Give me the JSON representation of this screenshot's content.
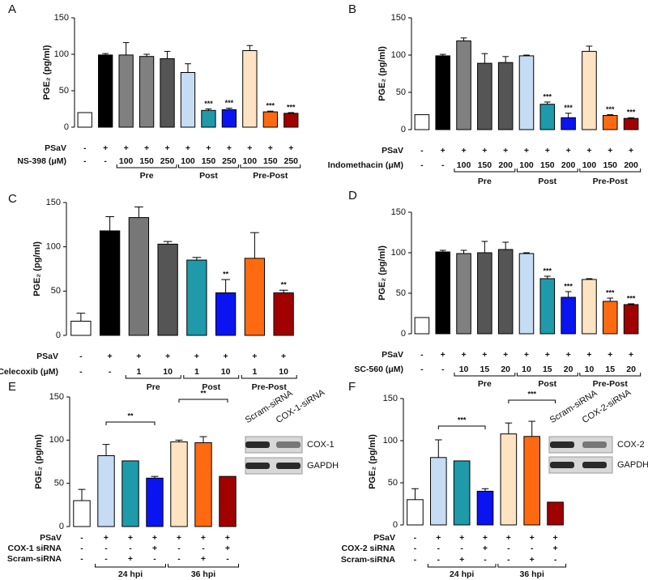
{
  "chart_data": [
    {
      "type": "bar",
      "panel": "A",
      "y_label": "PGE₂ (pg/ml)",
      "ylim": [
        0,
        150
      ],
      "yticks": [
        0,
        50,
        100,
        150
      ],
      "values": [
        20,
        99,
        99,
        97,
        94,
        75,
        23,
        24,
        105,
        21,
        19
      ],
      "errors": [
        null,
        2,
        17,
        3,
        10,
        12,
        2,
        2,
        7,
        1,
        1
      ],
      "colors": [
        "#ffffff",
        "#000000",
        "#808080",
        "#808080",
        "#555555",
        "#c6dcf2",
        "#1e9aaa",
        "#0a14f0",
        "#fde3c2",
        "#ff6a10",
        "#a00000"
      ],
      "significance": [
        null,
        null,
        null,
        null,
        null,
        null,
        "***",
        "***",
        null,
        "***",
        "***"
      ],
      "conditions": [
        {
          "label": "PSaV",
          "values": [
            "-",
            "+",
            "+",
            "+",
            "+",
            "+",
            "+",
            "+",
            "+",
            "+",
            "+"
          ]
        },
        {
          "label": "NS-398 (μM)",
          "values": [
            "-",
            "-",
            "100",
            "150",
            "250",
            "100",
            "150",
            "250",
            "100",
            "150",
            "250"
          ]
        }
      ],
      "groups": [
        "Pre",
        "Post",
        "Pre-Post"
      ]
    },
    {
      "type": "bar",
      "panel": "B",
      "y_label": "PGE₂ (pg/ml)",
      "ylim": [
        0,
        150
      ],
      "yticks": [
        0,
        50,
        100,
        150
      ],
      "values": [
        20,
        99,
        119,
        89,
        90,
        99,
        34,
        16,
        105,
        19,
        15
      ],
      "errors": [
        null,
        2,
        4,
        13,
        8,
        1,
        3,
        6,
        7,
        1,
        1
      ],
      "colors": [
        "#ffffff",
        "#000000",
        "#808080",
        "#555555",
        "#555555",
        "#c6dcf2",
        "#1e9aaa",
        "#0a14f0",
        "#fde3c2",
        "#ff6a10",
        "#a00000"
      ],
      "significance": [
        null,
        null,
        null,
        null,
        null,
        null,
        "***",
        "***",
        null,
        "***",
        "***"
      ],
      "conditions": [
        {
          "label": "PSaV",
          "values": [
            "-",
            "+",
            "+",
            "+",
            "+",
            "+",
            "+",
            "+",
            "+",
            "+",
            "+"
          ]
        },
        {
          "label": "Indomethacin (μM)",
          "values": [
            "-",
            "-",
            "100",
            "150",
            "200",
            "100",
            "150",
            "200",
            "100",
            "150",
            "200"
          ]
        }
      ],
      "groups": [
        "Pre",
        "Post",
        "Pre-Post"
      ]
    },
    {
      "type": "bar",
      "panel": "C",
      "y_label": "PGE₂ (pg/ml)",
      "ylim": [
        0,
        150
      ],
      "yticks": [
        0,
        50,
        100,
        150
      ],
      "values": [
        16,
        118,
        133,
        103,
        85,
        48,
        87,
        48
      ],
      "errors": [
        9,
        16,
        12,
        3,
        3,
        15,
        29,
        3
      ],
      "colors": [
        "#ffffff",
        "#000000",
        "#777777",
        "#555555",
        "#1e9aaa",
        "#0a14f0",
        "#ff6a10",
        "#a00000"
      ],
      "significance": [
        null,
        null,
        null,
        null,
        null,
        "**",
        null,
        "**"
      ],
      "conditions": [
        {
          "label": "PSaV",
          "values": [
            "-",
            "+",
            "+",
            "+",
            "+",
            "+",
            "+",
            "+"
          ]
        },
        {
          "label": "Celecoxib (μM)",
          "values": [
            "-",
            "-",
            "1",
            "10",
            "1",
            "10",
            "1",
            "10"
          ]
        }
      ],
      "groups": [
        "Pre",
        "Post",
        "Pre-Post"
      ]
    },
    {
      "type": "bar",
      "panel": "D",
      "y_label": "PGE₂ (pg/ml)",
      "ylim": [
        0,
        150
      ],
      "yticks": [
        0,
        50,
        100,
        150
      ],
      "values": [
        20,
        101,
        99,
        100,
        104,
        99,
        68,
        45,
        67,
        40,
        36
      ],
      "errors": [
        null,
        2,
        4,
        14,
        9,
        1,
        3,
        7,
        1,
        4,
        1
      ],
      "colors": [
        "#ffffff",
        "#000000",
        "#808080",
        "#555555",
        "#555555",
        "#c6dcf2",
        "#1e9aaa",
        "#0a14f0",
        "#fde3c2",
        "#ff6a10",
        "#a00000"
      ],
      "significance": [
        null,
        null,
        null,
        null,
        null,
        null,
        "***",
        "***",
        null,
        "***",
        "***"
      ],
      "conditions": [
        {
          "label": "PSaV",
          "values": [
            "-",
            "+",
            "+",
            "+",
            "+",
            "+",
            "+",
            "+",
            "+",
            "+",
            "+"
          ]
        },
        {
          "label": "SC-560 (μM)",
          "values": [
            "-",
            "-",
            "10",
            "15",
            "20",
            "10",
            "15",
            "20",
            "10",
            "15",
            "20"
          ]
        }
      ],
      "groups": [
        "Pre",
        "Post",
        "Pre-Post"
      ]
    },
    {
      "type": "bar",
      "panel": "E",
      "y_label": "PGE₂ (pg/ml)",
      "ylim": [
        0,
        150
      ],
      "yticks": [
        0,
        50,
        100,
        150
      ],
      "values": [
        30,
        82,
        76,
        56,
        98,
        97,
        58
      ],
      "errors": [
        13,
        13,
        null,
        2,
        2,
        7,
        null
      ],
      "colors": [
        "#ffffff",
        "#c6dcf2",
        "#1e9aaa",
        "#0a14f0",
        "#fde3c2",
        "#ff6a10",
        "#a00000"
      ],
      "significance": [
        null,
        null,
        null,
        null,
        null,
        null,
        null
      ],
      "conditions": [
        {
          "label": "PSaV",
          "values": [
            "-",
            "+",
            "+",
            "+",
            "+",
            "+",
            "+"
          ]
        },
        {
          "label": "COX-1 siRNA",
          "values": [
            "-",
            "-",
            "-",
            "+",
            "-",
            "-",
            "+"
          ]
        },
        {
          "label": "Scram-siRNA",
          "values": [
            "-",
            "-",
            "+",
            "-",
            "-",
            "+",
            "-"
          ]
        }
      ],
      "groups": [
        "24 hpi",
        "36 hpi"
      ],
      "comparisons": [
        "**",
        "**"
      ],
      "blot": {
        "lanes": [
          "Scram-siRNA",
          "COX-1-siRNA"
        ],
        "bands": [
          "COX-1",
          "GAPDH"
        ]
      }
    },
    {
      "type": "bar",
      "panel": "F",
      "y_label": "PGE₂ (pg/ml)",
      "ylim": [
        0,
        150
      ],
      "yticks": [
        0,
        50,
        100,
        150
      ],
      "values": [
        30,
        80,
        76,
        40,
        108,
        105,
        27
      ],
      "errors": [
        13,
        21,
        null,
        3,
        13,
        18,
        null
      ],
      "colors": [
        "#ffffff",
        "#c6dcf2",
        "#1e9aaa",
        "#0a14f0",
        "#fde3c2",
        "#ff6a10",
        "#a00000"
      ],
      "significance": [
        null,
        null,
        null,
        null,
        null,
        null,
        null
      ],
      "conditions": [
        {
          "label": "PSaV",
          "values": [
            "-",
            "+",
            "+",
            "+",
            "+",
            "+",
            "+"
          ]
        },
        {
          "label": "COX-2 siRNA",
          "values": [
            "-",
            "-",
            "-",
            "+",
            "-",
            "-",
            "+"
          ]
        },
        {
          "label": "Scram-siRNA",
          "values": [
            "-",
            "-",
            "+",
            "-",
            "-",
            "+",
            "-"
          ]
        }
      ],
      "groups": [
        "24 hpi",
        "36 hpi"
      ],
      "comparisons": [
        "***",
        "***"
      ],
      "blot": {
        "lanes": [
          "Scram-siRNA",
          "COX-2-siRNA"
        ],
        "bands": [
          "COX-2",
          "GAPDH"
        ]
      }
    }
  ]
}
